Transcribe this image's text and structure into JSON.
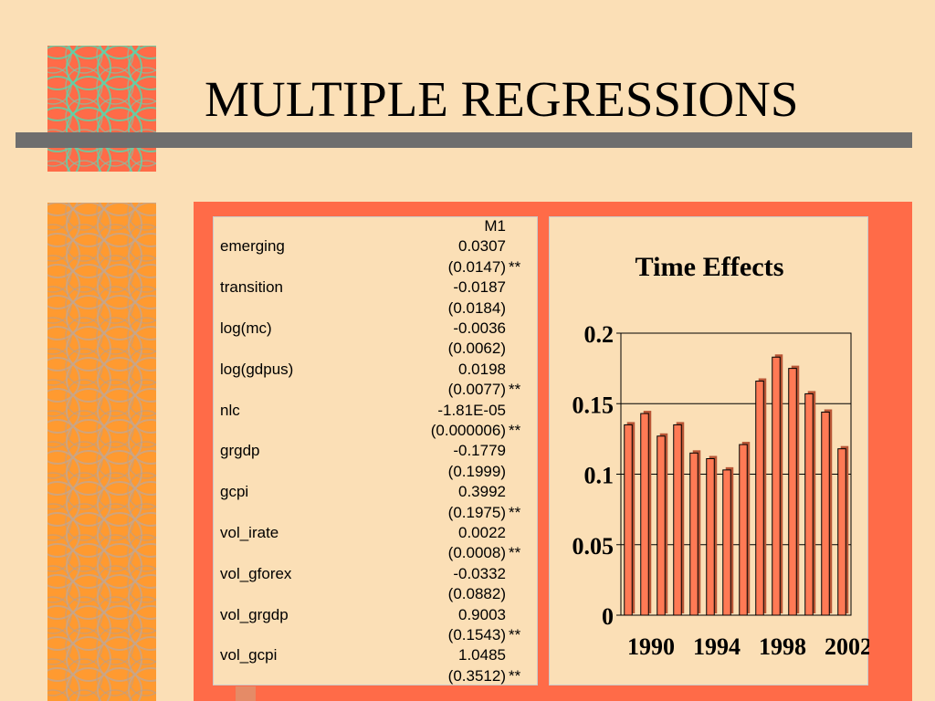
{
  "title": "MULTIPLE REGRESSIONS",
  "colors": {
    "background": "#fbdfb6",
    "accent_red": "#ff6b48",
    "accent_orange": "#ff9a30",
    "bar_gray": "#6e6e6e",
    "bar_fill": "#ff7a55"
  },
  "table": {
    "column_header": "M1",
    "rows": [
      {
        "label": "emerging",
        "coef": "0.0307",
        "se": "(0.0147)",
        "sig": "**"
      },
      {
        "label": "transition",
        "coef": "-0.0187",
        "se": "(0.0184)",
        "sig": ""
      },
      {
        "label": "log(mc)",
        "coef": "-0.0036",
        "se": "(0.0062)",
        "sig": ""
      },
      {
        "label": "log(gdpus)",
        "coef": "0.0198",
        "se": "(0.0077)",
        "sig": "**"
      },
      {
        "label": "nlc",
        "coef": "-1.81E-05",
        "se": "(0.000006)",
        "sig": "**"
      },
      {
        "label": "grgdp",
        "coef": "-0.1779",
        "se": "(0.1999)",
        "sig": ""
      },
      {
        "label": "gcpi",
        "coef": "0.3992",
        "se": "(0.1975)",
        "sig": "**"
      },
      {
        "label": "vol_irate",
        "coef": "0.0022",
        "se": "(0.0008)",
        "sig": "**"
      },
      {
        "label": "vol_gforex",
        "coef": "-0.0332",
        "se": "(0.0882)",
        "sig": ""
      },
      {
        "label": "vol_grgdp",
        "coef": "0.9003",
        "se": "(0.1543)",
        "sig": "**"
      },
      {
        "label": "vol_gcpi",
        "coef": "1.0485",
        "se": "(0.3512)",
        "sig": "**"
      }
    ]
  },
  "chart_data": {
    "type": "bar",
    "title": "Time Effects",
    "categories": [
      "1990",
      "1991",
      "1992",
      "1993",
      "1994",
      "1995",
      "1996",
      "1997",
      "1998",
      "1999",
      "2000",
      "2001",
      "2002",
      "2003"
    ],
    "values": [
      0.135,
      0.143,
      0.127,
      0.135,
      0.115,
      0.111,
      0.103,
      0.121,
      0.166,
      0.183,
      0.175,
      0.157,
      0.144,
      0.118
    ],
    "ylim": [
      0,
      0.2
    ],
    "yticks": [
      "0",
      "0.05",
      "0.1",
      "0.15",
      "0.2"
    ],
    "xtick_labels": [
      "1990",
      "1994",
      "1998",
      "2002"
    ],
    "grid": true,
    "legend": "none"
  }
}
